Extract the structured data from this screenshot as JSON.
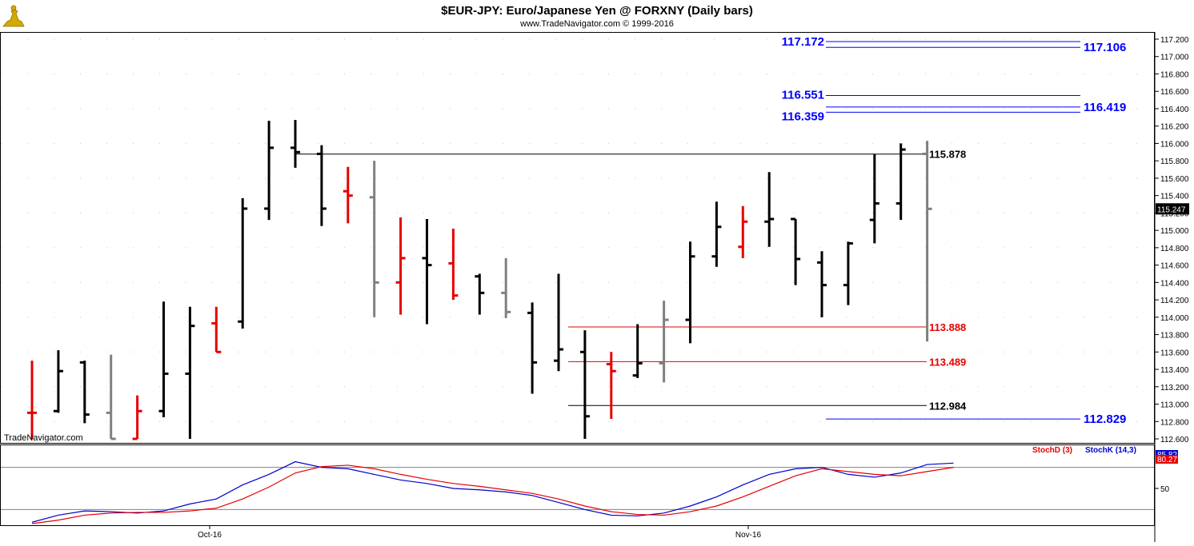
{
  "header": {
    "title": "$EUR-JPY:  Euro/Japanese Yen @ FORXNY  (Daily bars)",
    "subtitle": "www.TradeNavigator.com © 1999-2016"
  },
  "watermark": "TradeNavigator.com",
  "colors": {
    "up_bar": "#000000",
    "down_bar": "#e60000",
    "neutral_bar": "#808080",
    "level_blue": "#0000ff",
    "level_red": "#e60000",
    "stoch_k": "#0000cc",
    "stoch_d": "#e60000"
  },
  "chart_data": [
    {
      "type": "ohlc",
      "title": "$EUR-JPY:  Euro/Japanese Yen @ FORXNY  (Daily bars)",
      "ylim": [
        112.6,
        117.3
      ],
      "x_tick_labels": [
        "Oct-16",
        "Nov-16"
      ],
      "y_tick_labels": [
        "112.600",
        "112.800",
        "113.000",
        "113.200",
        "113.400",
        "113.600",
        "113.800",
        "114.000",
        "114.200",
        "114.400",
        "114.600",
        "114.800",
        "115.000",
        "115.200",
        "115.400",
        "115.600",
        "115.800",
        "116.000",
        "116.200",
        "116.400",
        "116.600",
        "116.800",
        "117.000",
        "117.200"
      ],
      "last_price_label": "115.247",
      "bars": [
        {
          "o": 112.9,
          "h": 113.5,
          "l": 112.6,
          "c": 112.9,
          "color": "red"
        },
        {
          "o": 112.92,
          "h": 113.62,
          "l": 112.9,
          "c": 113.38,
          "color": "black"
        },
        {
          "o": 113.48,
          "h": 113.5,
          "l": 112.78,
          "c": 112.88,
          "color": "black"
        },
        {
          "o": 112.9,
          "h": 113.57,
          "l": 112.6,
          "c": 112.6,
          "color": "gray"
        },
        {
          "o": 112.6,
          "h": 113.1,
          "l": 112.6,
          "c": 112.92,
          "color": "red"
        },
        {
          "o": 112.92,
          "h": 114.18,
          "l": 112.85,
          "c": 113.35,
          "color": "black"
        },
        {
          "o": 113.35,
          "h": 114.12,
          "l": 112.6,
          "c": 113.9,
          "color": "black"
        },
        {
          "o": 113.93,
          "h": 114.12,
          "l": 113.6,
          "c": 113.6,
          "color": "red"
        },
        {
          "o": 113.95,
          "h": 115.37,
          "l": 113.87,
          "c": 115.25,
          "color": "black"
        },
        {
          "o": 115.25,
          "h": 116.26,
          "l": 115.12,
          "c": 115.95,
          "color": "black"
        },
        {
          "o": 115.95,
          "h": 116.27,
          "l": 115.72,
          "c": 115.9,
          "color": "black"
        },
        {
          "o": 115.88,
          "h": 115.98,
          "l": 115.05,
          "c": 115.25,
          "color": "black"
        },
        {
          "o": 115.45,
          "h": 115.73,
          "l": 115.08,
          "c": 115.4,
          "color": "red"
        },
        {
          "o": 115.38,
          "h": 115.8,
          "l": 114.0,
          "c": 114.4,
          "color": "gray"
        },
        {
          "o": 114.4,
          "h": 115.15,
          "l": 114.03,
          "c": 114.68,
          "color": "red"
        },
        {
          "o": 114.68,
          "h": 115.13,
          "l": 113.92,
          "c": 114.6,
          "color": "black"
        },
        {
          "o": 114.62,
          "h": 115.02,
          "l": 114.2,
          "c": 114.25,
          "color": "red"
        },
        {
          "o": 114.47,
          "h": 114.5,
          "l": 114.03,
          "c": 114.28,
          "color": "black"
        },
        {
          "o": 114.28,
          "h": 114.68,
          "l": 113.99,
          "c": 114.06,
          "color": "gray"
        },
        {
          "o": 114.05,
          "h": 114.17,
          "l": 113.12,
          "c": 113.48,
          "color": "black"
        },
        {
          "o": 113.5,
          "h": 114.5,
          "l": 113.38,
          "c": 113.63,
          "color": "black"
        },
        {
          "o": 113.6,
          "h": 113.85,
          "l": 112.6,
          "c": 112.86,
          "color": "black"
        },
        {
          "o": 113.46,
          "h": 113.6,
          "l": 112.83,
          "c": 113.38,
          "color": "red"
        },
        {
          "o": 113.33,
          "h": 113.92,
          "l": 113.3,
          "c": 113.47,
          "color": "black"
        },
        {
          "o": 113.47,
          "h": 114.19,
          "l": 113.25,
          "c": 113.97,
          "color": "gray"
        },
        {
          "o": 113.97,
          "h": 114.87,
          "l": 113.7,
          "c": 114.7,
          "color": "black"
        },
        {
          "o": 114.7,
          "h": 115.33,
          "l": 114.58,
          "c": 115.04,
          "color": "black"
        },
        {
          "o": 114.81,
          "h": 115.28,
          "l": 114.68,
          "c": 115.1,
          "color": "red"
        },
        {
          "o": 115.1,
          "h": 115.67,
          "l": 114.81,
          "c": 115.13,
          "color": "black"
        },
        {
          "o": 115.13,
          "h": 115.13,
          "l": 114.37,
          "c": 114.67,
          "color": "black"
        },
        {
          "o": 114.63,
          "h": 114.76,
          "l": 114.0,
          "c": 114.37,
          "color": "black"
        },
        {
          "o": 114.37,
          "h": 114.87,
          "l": 114.14,
          "c": 114.85,
          "color": "black"
        },
        {
          "o": 115.12,
          "h": 115.88,
          "l": 114.85,
          "c": 115.31,
          "color": "black"
        },
        {
          "o": 115.31,
          "h": 116.0,
          "l": 115.12,
          "c": 115.93,
          "color": "black"
        },
        {
          "o": 115.88,
          "h": 116.03,
          "l": 113.72,
          "c": 115.247,
          "color": "gray"
        }
      ],
      "levels": [
        {
          "label": "117.172",
          "values": [
            117.172
          ],
          "color": "blue",
          "side": "left"
        },
        {
          "label": "117.106",
          "values": [
            117.106
          ],
          "color": "blue",
          "side": "right"
        },
        {
          "label": "116.551",
          "values": [
            116.551
          ],
          "color": "blue",
          "side": "left"
        },
        {
          "label": "116.359",
          "values": [
            116.359
          ],
          "color": "blue",
          "side": "left"
        },
        {
          "label": "116.419",
          "values": [
            116.419
          ],
          "color": "blue",
          "side": "right"
        },
        {
          "label": "115.878",
          "values": [
            115.878
          ],
          "color": "black",
          "side": "right"
        },
        {
          "label": "113.888",
          "values": [
            113.888
          ],
          "color": "red",
          "side": "right"
        },
        {
          "label": "113.489",
          "values": [
            113.489
          ],
          "color": "red",
          "side": "right"
        },
        {
          "label": "112.984",
          "values": [
            112.984
          ],
          "color": "black",
          "side": "right"
        },
        {
          "label": "112.829",
          "values": [
            112.829
          ],
          "color": "blue",
          "side": "right"
        }
      ]
    },
    {
      "type": "line",
      "ylim": [
        0,
        100
      ],
      "y_tick_labels": [
        "50"
      ],
      "reference_lines": [
        80,
        20
      ],
      "last_value_labels": [
        "85.82",
        "80.27"
      ],
      "series": [
        {
          "name": "StochK (14,3)",
          "color": "blue",
          "values": [
            2,
            12,
            18,
            17,
            15,
            18,
            28,
            35,
            55,
            70,
            88,
            80,
            78,
            70,
            62,
            57,
            50,
            48,
            45,
            40,
            30,
            20,
            12,
            11,
            15,
            25,
            38,
            55,
            70,
            78,
            80,
            70,
            66,
            72,
            84,
            86
          ]
        },
        {
          "name": "StochD (3)",
          "color": "red",
          "values": [
            0,
            5,
            12,
            15,
            16,
            16,
            18,
            22,
            35,
            52,
            72,
            81,
            83,
            78,
            70,
            63,
            57,
            53,
            48,
            43,
            35,
            25,
            17,
            13,
            12,
            17,
            25,
            38,
            53,
            68,
            78,
            74,
            70,
            68,
            74,
            80
          ]
        }
      ]
    }
  ]
}
